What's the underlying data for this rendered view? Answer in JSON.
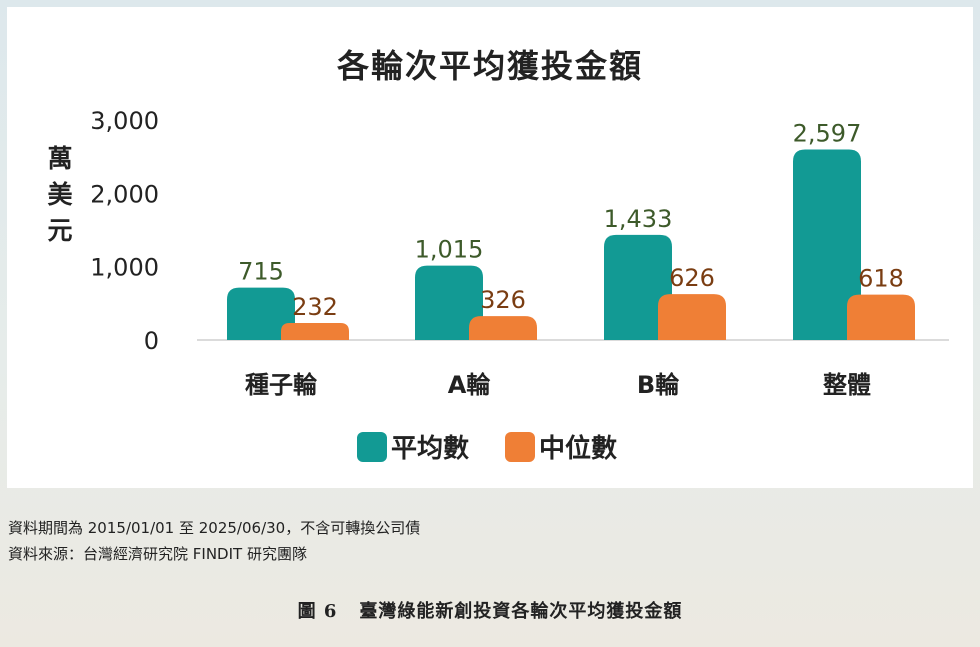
{
  "chart_data": {
    "type": "bar",
    "title": "各輪次平均獲投金額",
    "ylabel": "萬美元",
    "ylim": [
      0,
      3000
    ],
    "yticks": [
      "0",
      "1,000",
      "2,000",
      "3,000"
    ],
    "categories": [
      "種子輪",
      "A輪",
      "B輪",
      "整體"
    ],
    "series": [
      {
        "name": "平均數",
        "values": [
          715,
          1015,
          1433,
          2597
        ],
        "labels": [
          "715",
          "1,015",
          "1,433",
          "2,597"
        ],
        "color": "#129a94",
        "label_color": "#3d5a2a"
      },
      {
        "name": "中位數",
        "values": [
          232,
          326,
          626,
          618
        ],
        "labels": [
          "232",
          "326",
          "626",
          "618"
        ],
        "color": "#ef7f36",
        "label_color": "#7a3d12"
      }
    ],
    "legend_position": "bottom",
    "grid": false
  },
  "y_unit_chars": [
    "萬",
    "美",
    "元"
  ],
  "notes": {
    "period": "資料期間為 2015/01/01 至 2025/06/30，不含可轉換公司債",
    "source": "資料來源：台灣經濟研究院 FINDIT 研究團隊"
  },
  "caption": {
    "number": "圖 6",
    "text": "臺灣綠能新創投資各輪次平均獲投金額"
  }
}
